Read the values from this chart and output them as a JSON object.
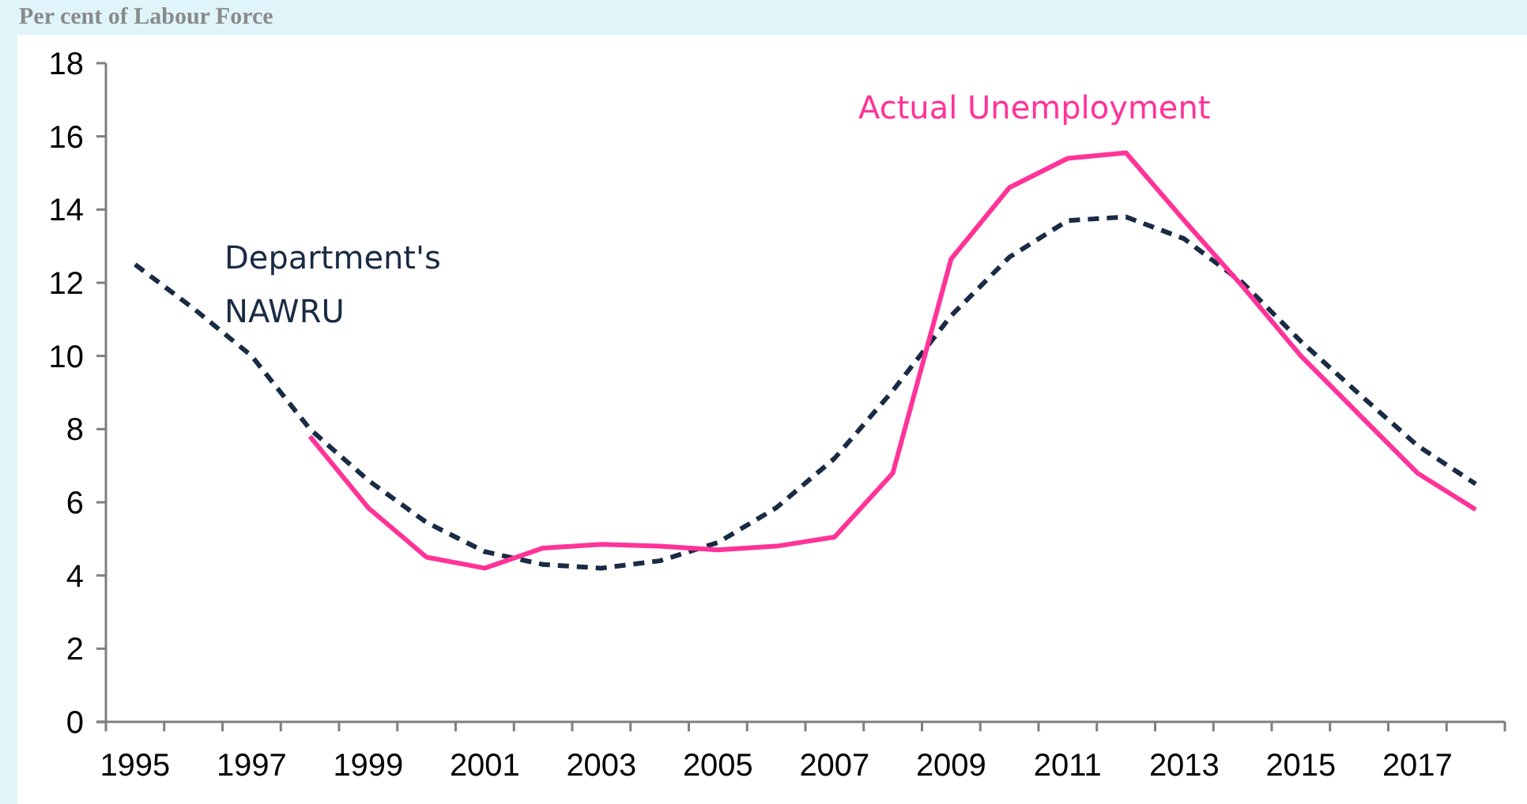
{
  "chart_data": {
    "type": "line",
    "ylabel": "Per cent of Labour Force",
    "categories": [
      "1995",
      null,
      "1997",
      null,
      "1999",
      null,
      "2001",
      null,
      "2003",
      null,
      "2005",
      null,
      "2007",
      null,
      "2009",
      null,
      "2011",
      null,
      "2013",
      null,
      "2015",
      null,
      "2017",
      null
    ],
    "ylim": [
      0,
      18
    ],
    "yticks": [
      0,
      2,
      4,
      6,
      8,
      10,
      12,
      14,
      16,
      18
    ],
    "grid": false,
    "series": [
      {
        "name": "Department's NAWRU",
        "color": "#1a2b45",
        "line_style": "dashed",
        "values": [
          12.5,
          11.3,
          10.0,
          8.0,
          6.6,
          5.45,
          4.65,
          4.3,
          4.2,
          4.4,
          4.9,
          5.85,
          7.2,
          9.05,
          11.1,
          12.7,
          13.7,
          13.8,
          13.2,
          12.0,
          10.4,
          8.96,
          7.55,
          6.5
        ]
      },
      {
        "name": "Actual Unemployment",
        "color": "#ff3399",
        "line_style": "solid",
        "values": [
          null,
          null,
          null,
          7.8,
          5.85,
          4.5,
          4.2,
          4.75,
          4.85,
          4.8,
          4.7,
          4.8,
          5.05,
          6.8,
          12.65,
          14.6,
          15.4,
          15.55,
          13.7,
          11.9,
          10.0,
          8.4,
          6.8,
          5.8
        ]
      }
    ]
  }
}
